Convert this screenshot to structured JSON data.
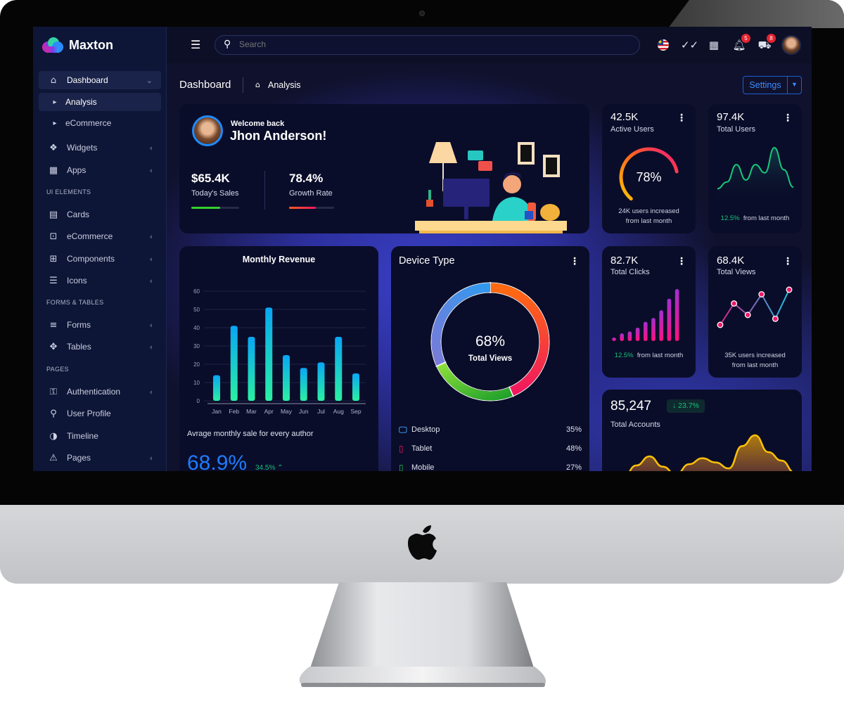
{
  "app": {
    "name": "Maxton"
  },
  "sidebar": {
    "items": [
      {
        "type": "item",
        "label": "Dashboard",
        "icon": "home-icon",
        "glyph": "⌂",
        "chev": "⌄",
        "active": true
      },
      {
        "type": "sub",
        "label": "Analysis",
        "active": true
      },
      {
        "type": "sub",
        "label": "eCommerce"
      },
      {
        "type": "item",
        "label": "Widgets",
        "icon": "widgets-icon",
        "glyph": "❖",
        "chev": "‹"
      },
      {
        "type": "item",
        "label": "Apps",
        "icon": "apps-grid-icon",
        "glyph": "▦",
        "chev": "‹"
      },
      {
        "type": "head",
        "label": "UI ELEMENTS"
      },
      {
        "type": "item",
        "label": "Cards",
        "icon": "archive-icon",
        "glyph": "▤"
      },
      {
        "type": "item",
        "label": "eCommerce",
        "icon": "shopping-bag-icon",
        "glyph": "⊡",
        "chev": "‹"
      },
      {
        "type": "item",
        "label": "Components",
        "icon": "components-icon",
        "glyph": "⊞",
        "chev": "‹"
      },
      {
        "type": "item",
        "label": "Icons",
        "icon": "icons-icon",
        "glyph": "☰",
        "chev": "‹"
      },
      {
        "type": "head",
        "label": "FORMS & TABLES"
      },
      {
        "type": "item",
        "label": "Forms",
        "icon": "forms-icon",
        "glyph": "≡",
        "chev": "‹"
      },
      {
        "type": "item",
        "label": "Tables",
        "icon": "tables-icon",
        "glyph": "✥",
        "chev": "‹"
      },
      {
        "type": "head",
        "label": "PAGES"
      },
      {
        "type": "item",
        "label": "Authentication",
        "icon": "lock-icon",
        "glyph": "⚿",
        "chev": "‹"
      },
      {
        "type": "item",
        "label": "User Profile",
        "icon": "user-icon",
        "glyph": "⚲"
      },
      {
        "type": "item",
        "label": "Timeline",
        "icon": "timeline-icon",
        "glyph": "◑"
      },
      {
        "type": "item",
        "label": "Pages",
        "icon": "warning-icon",
        "glyph": "⚠",
        "chev": "‹"
      }
    ]
  },
  "header": {
    "search_placeholder": "Search",
    "notifications_count": "5",
    "cart_count": "8"
  },
  "breadcrumb": {
    "title": "Dashboard",
    "current": "Analysis"
  },
  "settings_label": "Settings",
  "welcome": {
    "greeting": "Welcome back",
    "name": "Jhon Anderson!",
    "stats": [
      {
        "value": "$65.4K",
        "label": "Today's Sales",
        "progress": 60
      },
      {
        "value": "78.4%",
        "label": "Growth Rate",
        "progress": 60
      }
    ]
  },
  "active_users": {
    "value": "42.5K",
    "label": "Active Users",
    "percent_text": "78%",
    "percent": 78,
    "note1": "24K users increased",
    "note2": "from last month"
  },
  "total_users": {
    "value": "97.4K",
    "label": "Total Users",
    "change": "12.5%",
    "note": "from last month",
    "series": [
      5,
      18,
      52,
      22,
      52,
      36,
      85,
      42,
      8
    ]
  },
  "monthly_revenue": {
    "title": "Monthly Revenue",
    "categories": [
      "Jan",
      "Feb",
      "Mar",
      "Apr",
      "May",
      "Jun",
      "Jul",
      "Aug",
      "Sep"
    ],
    "values": [
      14,
      41,
      35,
      51,
      25,
      18,
      21,
      35,
      15
    ],
    "yticks": [
      0,
      10,
      20,
      30,
      40,
      50,
      60
    ],
    "ylim": [
      0,
      60
    ],
    "caption": "Avrage monthly sale for every author",
    "big_value": "68.9%",
    "change": "34.5%"
  },
  "device_type": {
    "title": "Device Type",
    "center_value": "68%",
    "center_label": "Total Views",
    "items": [
      {
        "label": "Desktop",
        "value": "35%",
        "pct": 35,
        "color": "#3d8ee6",
        "icon": "desktop-icon"
      },
      {
        "label": "Tablet",
        "value": "48%",
        "pct": 48,
        "color": "#f0185f",
        "icon": "tablet-icon"
      },
      {
        "label": "Mobile",
        "value": "27%",
        "pct": 27,
        "color": "#26c44a",
        "icon": "mobile-icon"
      }
    ]
  },
  "total_clicks": {
    "value": "82.7K",
    "label": "Total Clicks",
    "change": "12.5%",
    "note": "from last month",
    "series": [
      1,
      4,
      5,
      7,
      10,
      12,
      16,
      22,
      27
    ]
  },
  "total_views": {
    "value": "68.4K",
    "label": "Total Views",
    "note1": "35K users increased",
    "note2": "from last month",
    "series": [
      10,
      38,
      23,
      50,
      18,
      56
    ]
  },
  "total_accounts": {
    "value": "85,247",
    "change": "23.7%",
    "label": "Total Accounts",
    "series": [
      0,
      20,
      35,
      18,
      5,
      22,
      32,
      25,
      15,
      52,
      70,
      42,
      28,
      8
    ]
  },
  "colors": {
    "accent": "#0d6efd",
    "green": "#18c07a",
    "card": "#0a0d29",
    "sidebar": "#0e1637"
  }
}
